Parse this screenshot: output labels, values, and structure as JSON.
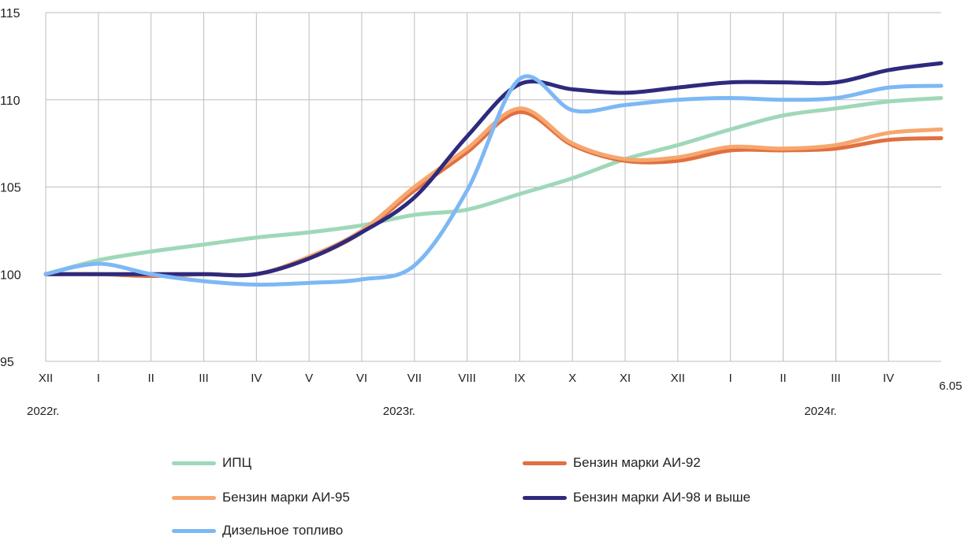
{
  "chart_data": {
    "type": "line",
    "title": "",
    "xlabel": "",
    "ylabel": "",
    "ylim": [
      95,
      115
    ],
    "yticks": [
      95,
      100,
      105,
      110,
      115
    ],
    "grid": true,
    "legend_position": "bottom",
    "categories": [
      "XII",
      "I",
      "II",
      "III",
      "IV",
      "V",
      "VI",
      "VII",
      "VIII",
      "IX",
      "X",
      "XI",
      "XII",
      "I",
      "II",
      "III",
      "IV",
      "6.05"
    ],
    "year_labels": [
      {
        "label": "2022г.",
        "at_index": 0
      },
      {
        "label": "2023г.",
        "at_index": 7
      },
      {
        "label": "2024г.",
        "at_index": 15
      }
    ],
    "series": [
      {
        "name": "ИПЦ",
        "color": "#9fd8b8",
        "values": [
          100.0,
          100.8,
          101.3,
          101.7,
          102.1,
          102.4,
          102.8,
          103.4,
          103.7,
          104.6,
          105.5,
          106.6,
          107.4,
          108.3,
          109.1,
          109.5,
          109.9,
          110.1
        ]
      },
      {
        "name": "Бензин марки АИ-92",
        "color": "#e07040",
        "values": [
          100.0,
          100.0,
          99.9,
          100.0,
          100.0,
          100.9,
          102.4,
          104.8,
          107.0,
          109.3,
          107.4,
          106.5,
          106.5,
          107.1,
          107.1,
          107.2,
          107.7,
          107.8
        ]
      },
      {
        "name": "Бензин марки АИ-95",
        "color": "#f6a66e",
        "values": [
          100.0,
          100.0,
          100.0,
          100.0,
          100.0,
          101.0,
          102.5,
          105.0,
          107.2,
          109.5,
          107.5,
          106.6,
          106.7,
          107.3,
          107.2,
          107.4,
          108.1,
          108.3
        ]
      },
      {
        "name": "Бензин марки АИ-98 и выше",
        "color": "#2e2a7e",
        "values": [
          100.0,
          100.0,
          100.0,
          100.0,
          100.0,
          100.9,
          102.4,
          104.4,
          107.9,
          110.9,
          110.6,
          110.4,
          110.7,
          111.0,
          111.0,
          111.0,
          111.7,
          112.1
        ]
      },
      {
        "name": "Дизельное топливо",
        "color": "#7db8f5",
        "values": [
          100.0,
          100.6,
          100.0,
          99.6,
          99.4,
          99.5,
          99.7,
          100.5,
          104.8,
          111.2,
          109.4,
          109.7,
          110.0,
          110.1,
          110.0,
          110.1,
          110.7,
          110.8
        ]
      }
    ]
  }
}
